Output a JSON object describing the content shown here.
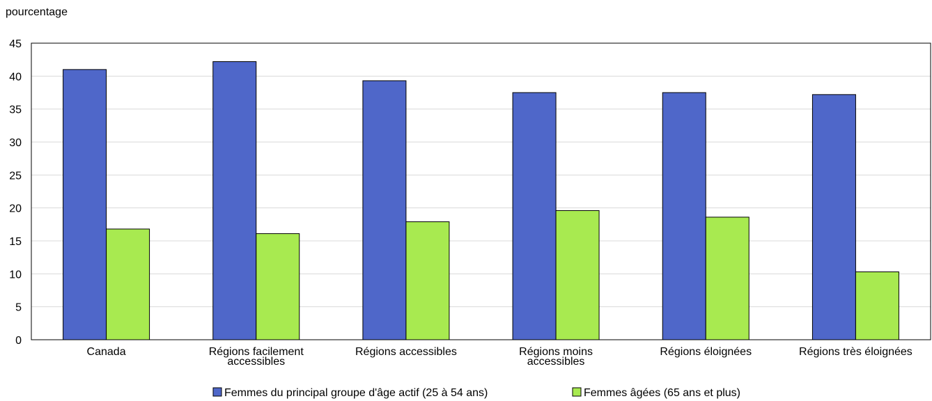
{
  "chart_data": {
    "type": "bar",
    "title": "",
    "ylabel": "pourcentage",
    "xlabel": "",
    "ylim": [
      0,
      45
    ],
    "yticks": [
      0,
      5,
      10,
      15,
      20,
      25,
      30,
      35,
      40,
      45
    ],
    "grid": true,
    "legend_position": "bottom",
    "categories": [
      [
        "Canada"
      ],
      [
        "Régions facilement",
        "accessibles"
      ],
      [
        "Régions accessibles"
      ],
      [
        "Régions moins",
        "accessibles"
      ],
      [
        "Régions éloignées"
      ],
      [
        "Régions très éloignées"
      ]
    ],
    "series": [
      {
        "name": "Femmes du principal groupe d'âge actif (25 à 54 ans)",
        "color": "#4f67c9",
        "values": [
          41.0,
          42.2,
          39.3,
          37.5,
          37.5,
          37.2
        ]
      },
      {
        "name": "Femmes âgées (65 ans et plus)",
        "color": "#a8ea50",
        "values": [
          16.8,
          16.1,
          17.9,
          19.6,
          18.6,
          10.3
        ]
      }
    ]
  }
}
